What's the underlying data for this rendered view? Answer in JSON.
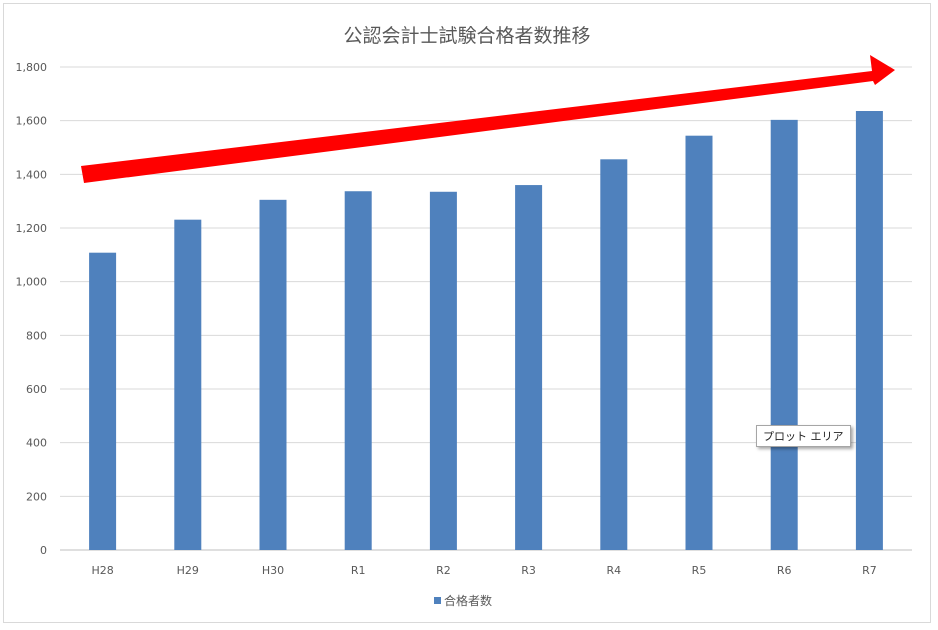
{
  "chart_data": {
    "type": "bar",
    "title": "公認会計士試験合格者数推移",
    "categories": [
      "H28",
      "H29",
      "H30",
      "R1",
      "R2",
      "R3",
      "R4",
      "R5",
      "R6",
      "R7"
    ],
    "series": [
      {
        "name": "合格者数",
        "values": [
          1108,
          1231,
          1305,
          1337,
          1335,
          1360,
          1456,
          1544,
          1603,
          1636
        ],
        "color": "#4f81bd"
      }
    ],
    "ylim": [
      0,
      1800
    ],
    "yticks": [
      "0",
      "200",
      "400",
      "600",
      "800",
      "1,000",
      "1,200",
      "1,400",
      "1,600",
      "1,800"
    ],
    "grid": true,
    "legend": "bottom",
    "annotations": [
      {
        "type": "arrow",
        "description": "upward trend arrow",
        "color": "#ff0000"
      }
    ]
  },
  "tooltip": {
    "text": "プロット エリア"
  }
}
